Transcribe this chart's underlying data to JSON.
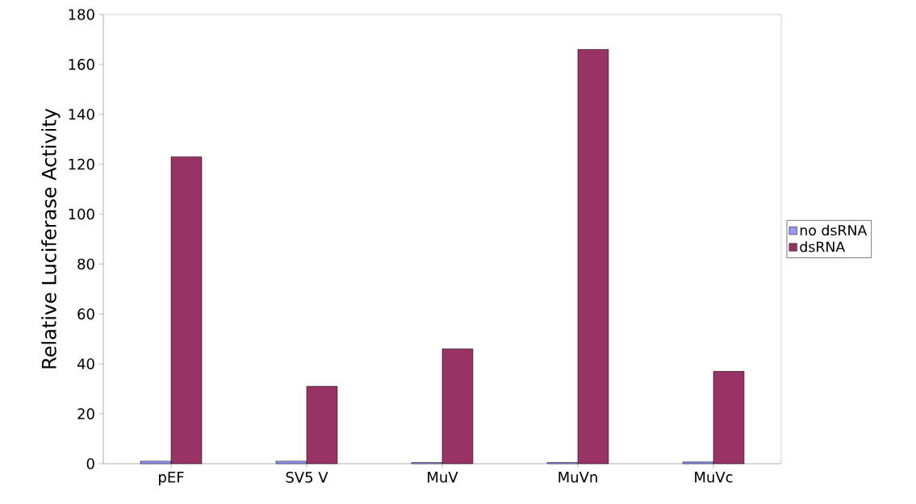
{
  "chart_data": {
    "type": "bar",
    "ylabel": "Relative Luciferase Activity",
    "categories": [
      "pEF",
      "SV5 V",
      "MuV",
      "MuVn",
      "MuVc"
    ],
    "series": [
      {
        "name": "no dsRNA",
        "color": "#9999ff",
        "values": [
          1,
          1,
          0.5,
          0.5,
          0.7
        ]
      },
      {
        "name": "dsRNA",
        "color": "#993366",
        "values": [
          123,
          31,
          46,
          166,
          37
        ]
      }
    ],
    "ylim": [
      0,
      180
    ],
    "yticks": [
      0,
      20,
      40,
      60,
      80,
      100,
      120,
      140,
      160,
      180
    ],
    "grid": false,
    "legend": "right"
  }
}
